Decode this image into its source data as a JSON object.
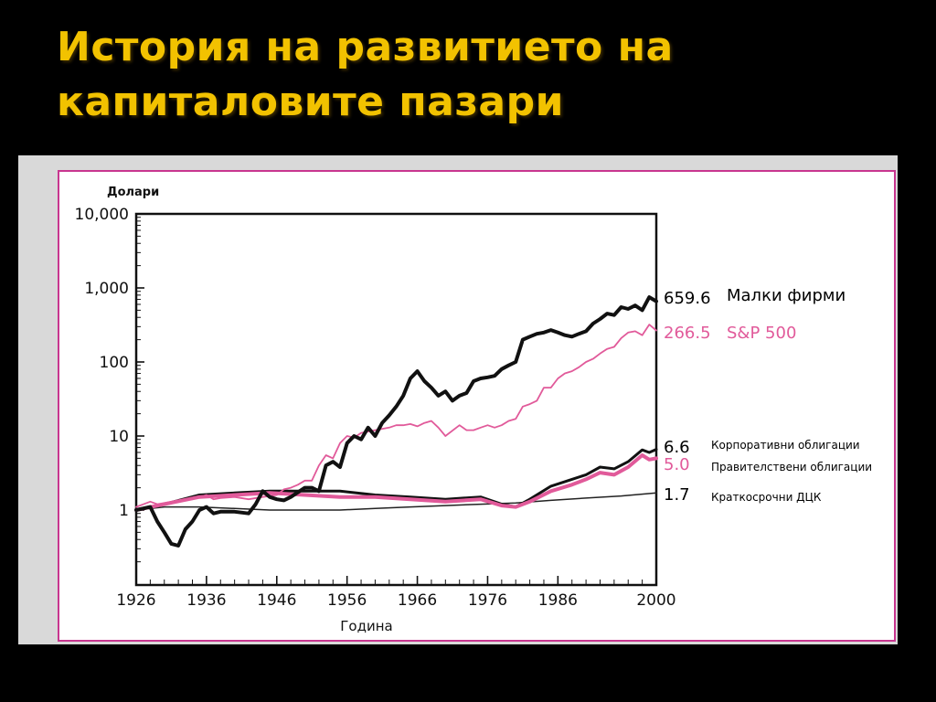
{
  "slide": {
    "title_line1": "История на развитието на",
    "title_line2": "капиталовите пазари"
  },
  "colors": {
    "title": "#f2c200",
    "frame": "#c8368f",
    "pink_series": "#e15a9a",
    "black_series": "#111111"
  },
  "chart_data": {
    "type": "line",
    "title": "",
    "ylabel": "Долари",
    "xlabel": "Година",
    "y_scale": "log",
    "ylim": [
      0.15,
      10000
    ],
    "xlim": [
      1926,
      2000
    ],
    "y_ticks": [
      {
        "value": 10000,
        "label": "10,000"
      },
      {
        "value": 1000,
        "label": "1,000"
      },
      {
        "value": 100,
        "label": "100"
      },
      {
        "value": 10,
        "label": "10"
      },
      {
        "value": 1,
        "label": "1"
      }
    ],
    "x_ticks": [
      {
        "value": 1926,
        "label": "1926"
      },
      {
        "value": 1936,
        "label": "1936"
      },
      {
        "value": 1946,
        "label": "1946"
      },
      {
        "value": 1956,
        "label": "1956"
      },
      {
        "value": 1966,
        "label": "1966"
      },
      {
        "value": 1976,
        "label": "1976"
      },
      {
        "value": 1986,
        "label": "1986"
      },
      {
        "value": 2000,
        "label": "2000"
      }
    ],
    "series": [
      {
        "name": "Малки фирми",
        "end_label": "659.6",
        "color": "#111111",
        "width": 4,
        "x": [
          1926,
          1928,
          1929,
          1930,
          1931,
          1932,
          1933,
          1934,
          1935,
          1936,
          1937,
          1938,
          1940,
          1942,
          1943,
          1944,
          1945,
          1946,
          1947,
          1948,
          1950,
          1951,
          1952,
          1953,
          1954,
          1955,
          1956,
          1957,
          1958,
          1959,
          1960,
          1961,
          1962,
          1963,
          1964,
          1965,
          1966,
          1967,
          1968,
          1969,
          1970,
          1971,
          1972,
          1973,
          1974,
          1975,
          1976,
          1977,
          1978,
          1979,
          1980,
          1981,
          1982,
          1983,
          1984,
          1985,
          1986,
          1987,
          1988,
          1989,
          1990,
          1991,
          1992,
          1993,
          1994,
          1995,
          1996,
          1997,
          1998,
          1999,
          2000
        ],
        "values": [
          1.0,
          1.1,
          0.7,
          0.5,
          0.35,
          0.33,
          0.55,
          0.7,
          1.0,
          1.1,
          0.9,
          0.95,
          0.95,
          0.9,
          1.2,
          1.8,
          1.5,
          1.4,
          1.35,
          1.5,
          2.0,
          2.0,
          1.8,
          4.0,
          4.5,
          3.8,
          8.0,
          10.0,
          9.0,
          13.0,
          10.0,
          15.0,
          19.0,
          25.0,
          35.0,
          60.0,
          75.0,
          55.0,
          45.0,
          35.0,
          40.0,
          30.0,
          35.0,
          38.0,
          55.0,
          60.0,
          62.0,
          65.0,
          80.0,
          90.0,
          100.0,
          200.0,
          220.0,
          240.0,
          250.0,
          270.0,
          250.0,
          230.0,
          220.0,
          240.0,
          260.0,
          330.0,
          380.0,
          450.0,
          430.0,
          550.0,
          520.0,
          580.0,
          500.0,
          750.0,
          659.6
        ]
      },
      {
        "name": "S&P 500",
        "end_label": "266.5",
        "color": "#e15a9a",
        "width": 1.8,
        "x": [
          1926,
          1928,
          1929,
          1930,
          1932,
          1934,
          1936,
          1937,
          1938,
          1940,
          1942,
          1944,
          1946,
          1947,
          1948,
          1949,
          1950,
          1951,
          1952,
          1953,
          1954,
          1955,
          1956,
          1957,
          1958,
          1960,
          1962,
          1963,
          1964,
          1965,
          1966,
          1967,
          1968,
          1969,
          1970,
          1972,
          1973,
          1974,
          1975,
          1976,
          1977,
          1978,
          1979,
          1980,
          1981,
          1982,
          1983,
          1984,
          1985,
          1986,
          1987,
          1988,
          1989,
          1990,
          1991,
          1992,
          1993,
          1994,
          1995,
          1996,
          1997,
          1998,
          1999,
          2000
        ],
        "values": [
          1.1,
          1.3,
          1.2,
          1.25,
          1.35,
          1.4,
          1.6,
          1.4,
          1.45,
          1.5,
          1.4,
          1.5,
          1.6,
          1.9,
          2.0,
          2.2,
          2.5,
          2.5,
          4.0,
          5.5,
          5.0,
          8.0,
          10.0,
          9.5,
          11.0,
          12.0,
          13.0,
          14.0,
          14.0,
          14.5,
          13.5,
          15.0,
          16.0,
          13.0,
          10.0,
          14.0,
          12.0,
          12.0,
          13.0,
          14.0,
          13.0,
          14.0,
          16.0,
          17.0,
          25.0,
          27.0,
          30.0,
          45.0,
          45.0,
          60.0,
          70.0,
          75.0,
          85.0,
          100.0,
          110.0,
          130.0,
          150.0,
          160.0,
          210.0,
          250.0,
          260.0,
          230.0,
          320.0,
          266.5
        ]
      },
      {
        "name": "Корпоративни облигации",
        "end_label": "6.6",
        "color": "#111111",
        "width": 3,
        "x": [
          1926,
          1930,
          1935,
          1940,
          1945,
          1950,
          1955,
          1960,
          1965,
          1970,
          1975,
          1978,
          1980,
          1982,
          1985,
          1988,
          1990,
          1992,
          1994,
          1996,
          1998,
          1999,
          2000
        ],
        "values": [
          1.0,
          1.2,
          1.6,
          1.7,
          1.8,
          1.8,
          1.8,
          1.6,
          1.5,
          1.4,
          1.5,
          1.2,
          1.1,
          1.4,
          2.1,
          2.6,
          3.0,
          3.8,
          3.6,
          4.5,
          6.5,
          6.0,
          6.6
        ]
      },
      {
        "name": "Правителствени облигации",
        "end_label": "5.0",
        "color": "#e15a9a",
        "width": 4,
        "x": [
          1926,
          1930,
          1935,
          1940,
          1945,
          1950,
          1955,
          1960,
          1965,
          1970,
          1975,
          1978,
          1980,
          1982,
          1985,
          1988,
          1990,
          1992,
          1994,
          1996,
          1998,
          1999,
          2000
        ],
        "values": [
          1.0,
          1.2,
          1.5,
          1.6,
          1.7,
          1.6,
          1.5,
          1.5,
          1.4,
          1.3,
          1.4,
          1.15,
          1.1,
          1.3,
          1.8,
          2.2,
          2.6,
          3.2,
          3.0,
          3.8,
          5.5,
          4.8,
          5.0
        ]
      },
      {
        "name": "Краткосрочни ДЦК",
        "end_label": "1.7",
        "color": "#222222",
        "width": 1.5,
        "x": [
          1926,
          1930,
          1935,
          1940,
          1945,
          1950,
          1955,
          1960,
          1965,
          1970,
          1975,
          1980,
          1985,
          1990,
          1995,
          2000
        ],
        "values": [
          1.0,
          1.1,
          1.1,
          1.05,
          1.0,
          1.0,
          1.0,
          1.05,
          1.1,
          1.15,
          1.2,
          1.25,
          1.35,
          1.45,
          1.55,
          1.7
        ]
      }
    ]
  }
}
